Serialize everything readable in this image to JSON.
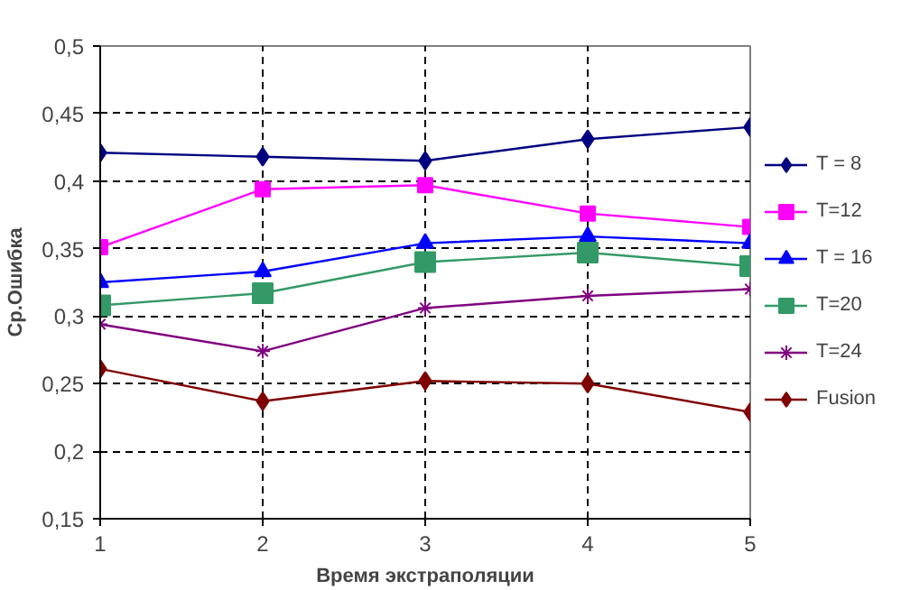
{
  "chart_data": {
    "type": "line",
    "xlabel": "Время экстраполяции",
    "ylabel": "Ср.Ошибка",
    "x": [
      1,
      2,
      3,
      4,
      5
    ],
    "xlim": [
      1,
      5
    ],
    "xticks": [
      1,
      2,
      3,
      4,
      5
    ],
    "ylim": [
      0.15,
      0.5
    ],
    "yticks": [
      {
        "value": 0.15,
        "label": "0,15"
      },
      {
        "value": 0.2,
        "label": "0,2"
      },
      {
        "value": 0.25,
        "label": "0,25"
      },
      {
        "value": 0.3,
        "label": "0,3"
      },
      {
        "value": 0.35,
        "label": "0,35"
      },
      {
        "value": 0.4,
        "label": "0,4"
      },
      {
        "value": 0.45,
        "label": "0,45"
      },
      {
        "value": 0.5,
        "label": "0,5"
      }
    ],
    "grid": true,
    "legend": "right",
    "line_style": "solid",
    "series": [
      {
        "name": "T = 8",
        "color": "#000080",
        "marker": "diamond",
        "values": [
          0.421,
          0.418,
          0.415,
          0.431,
          0.44
        ]
      },
      {
        "name": "T=12",
        "color": "#ff00ff",
        "marker": "square",
        "values": [
          0.351,
          0.394,
          0.397,
          0.376,
          0.366
        ]
      },
      {
        "name": "T = 16",
        "color": "#0000ff",
        "marker": "triangle",
        "values": [
          0.325,
          0.333,
          0.354,
          0.359,
          0.354
        ]
      },
      {
        "name": "T=20",
        "color": "#339966",
        "marker": "square",
        "values": [
          0.308,
          0.317,
          0.34,
          0.347,
          0.337
        ]
      },
      {
        "name": "T=24",
        "color": "#800080",
        "marker": "cross",
        "values": [
          0.294,
          0.274,
          0.306,
          0.315,
          0.32
        ]
      },
      {
        "name": "Fusion",
        "color": "#800000",
        "marker": "diamond",
        "values": [
          0.261,
          0.237,
          0.252,
          0.25,
          0.229
        ]
      }
    ]
  }
}
